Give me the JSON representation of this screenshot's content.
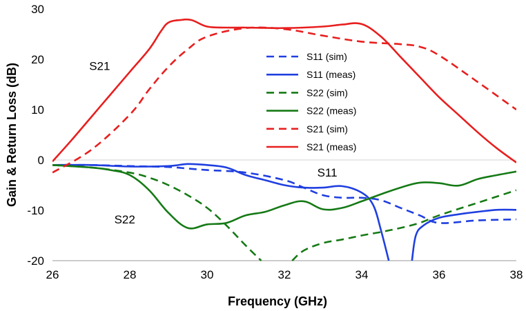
{
  "chart_data": {
    "type": "line",
    "title": "",
    "xlabel": "Frequency (GHz)",
    "ylabel": "Gain & Return Loss (dB)",
    "xlim": [
      26,
      38
    ],
    "ylim": [
      -20,
      30
    ],
    "xticks": [
      26,
      28,
      30,
      32,
      34,
      36,
      38
    ],
    "yticks": [
      -20,
      -10,
      0,
      10,
      20,
      30
    ],
    "grid": false,
    "legend_position": "center-right",
    "series": [
      {
        "name": "S11 (sim)",
        "color": "#1f3fe0",
        "dash": "dashed",
        "x": [
          26,
          27,
          28,
          29,
          29.5,
          30,
          31,
          32,
          32.5,
          33,
          33.5,
          34,
          34.5,
          35,
          35.5,
          36,
          37,
          38
        ],
        "y": [
          -1,
          -1,
          -1.2,
          -1.4,
          -1.7,
          -2,
          -2.5,
          -4,
          -5.5,
          -7,
          -7.5,
          -7.5,
          -8,
          -9.5,
          -11,
          -12.5,
          -12,
          -11.8
        ]
      },
      {
        "name": "S11 (meas)",
        "color": "#1f3fe0",
        "dash": "solid",
        "segments": [
          {
            "x": [
              26,
              27,
              28,
              29,
              29.5,
              30,
              30.5,
              31,
              31.5,
              32,
              32.5,
              33,
              33.5,
              34,
              34.3,
              34.5,
              34.7
            ],
            "y": [
              -1,
              -1,
              -1.3,
              -1.2,
              -0.8,
              -1,
              -1.5,
              -3,
              -4,
              -5,
              -5.5,
              -5.5,
              -5.2,
              -6.5,
              -9,
              -14,
              -20
            ]
          },
          {
            "x": [
              35.3,
              35.4,
              35.6,
              36,
              36.5,
              37,
              37.5,
              38
            ],
            "y": [
              -20,
              -15,
              -13,
              -11.5,
              -10.8,
              -10.3,
              -9.9,
              -9.9
            ]
          }
        ]
      },
      {
        "name": "S22 (sim)",
        "color": "#157a15",
        "dash": "dashed",
        "segments": [
          {
            "x": [
              26,
              27,
              28,
              28.5,
              29,
              29.5,
              30,
              30.5,
              31,
              31.4
            ],
            "y": [
              -1,
              -1.5,
              -2.5,
              -3.5,
              -5,
              -7,
              -9.5,
              -13,
              -17,
              -20
            ]
          },
          {
            "x": [
              32.2,
              32.5,
              33,
              33.5,
              34,
              34.5,
              35,
              35.5,
              36,
              37,
              38
            ],
            "y": [
              -20,
              -18,
              -16.5,
              -15.8,
              -15,
              -14.3,
              -13.5,
              -12.5,
              -11,
              -8.5,
              -6
            ]
          }
        ]
      },
      {
        "name": "S22 (meas)",
        "color": "#157a15",
        "dash": "solid",
        "x": [
          26,
          27,
          27.5,
          28,
          28.5,
          29,
          29.5,
          30,
          30.5,
          31,
          31.5,
          32,
          32.5,
          33,
          33.5,
          34,
          34.5,
          35,
          35.5,
          36,
          36.5,
          37,
          37.5,
          38
        ],
        "y": [
          -1,
          -1.5,
          -2,
          -3,
          -6,
          -10.5,
          -13.5,
          -12.8,
          -12.5,
          -11,
          -10.3,
          -9,
          -8.2,
          -9.8,
          -9.5,
          -8.2,
          -6.8,
          -5.5,
          -4.5,
          -4.6,
          -5.1,
          -3.8,
          -3,
          -2.3
        ]
      },
      {
        "name": "S21 (sim)",
        "color": "#e81e1e",
        "dash": "dashed",
        "x": [
          26,
          27,
          28,
          28.5,
          29,
          29.5,
          30,
          31,
          32,
          33,
          34,
          35,
          35.5,
          36,
          37,
          38
        ],
        "y": [
          -2.5,
          2,
          9,
          14,
          18.5,
          22,
          24.5,
          26.2,
          26,
          24.7,
          23.5,
          23,
          22.5,
          20.8,
          15.5,
          10
        ]
      },
      {
        "name": "S21 (meas)",
        "color": "#e81e1e",
        "dash": "solid",
        "x": [
          26,
          26.5,
          27,
          27.5,
          28,
          28.5,
          28.8,
          29,
          29.3,
          29.6,
          30,
          30.5,
          31,
          32,
          33,
          33.5,
          34,
          34.5,
          35,
          35.5,
          36,
          36.5,
          37,
          37.5,
          38
        ],
        "y": [
          -0.3,
          4,
          8.5,
          13,
          17.5,
          22,
          25.5,
          27.3,
          27.8,
          27.8,
          26.5,
          26.3,
          26.3,
          26.2,
          26.5,
          26.9,
          27,
          24.5,
          20.5,
          16.5,
          12.5,
          9,
          5.5,
          2.3,
          -0.5
        ]
      }
    ],
    "annotations": [
      {
        "text": "S21",
        "x": 26.95,
        "y": 17.9
      },
      {
        "text": "S11",
        "x": 32.85,
        "y": -3.3
      },
      {
        "text": "S22",
        "x": 27.6,
        "y": -12.6
      }
    ]
  }
}
